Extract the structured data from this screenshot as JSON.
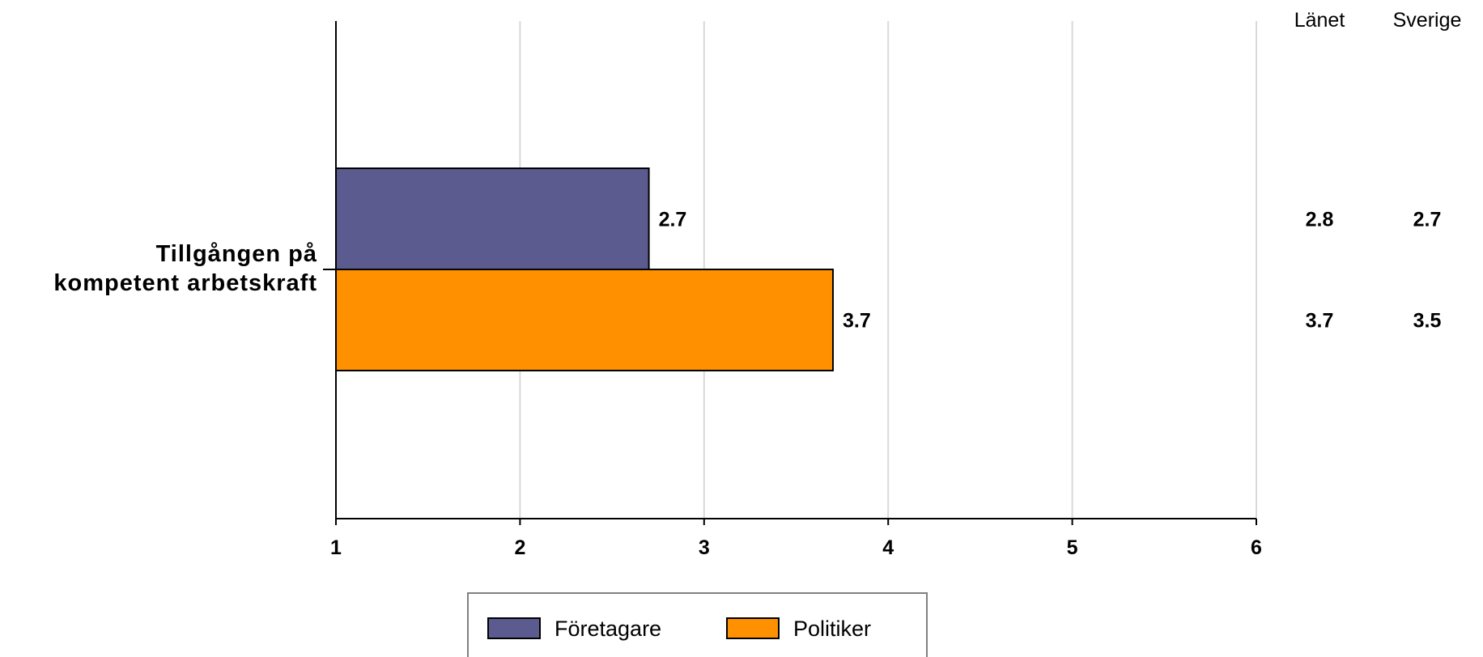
{
  "chart_data": {
    "type": "bar",
    "orientation": "horizontal",
    "categories": [
      "Tillgången på kompetent arbetskraft"
    ],
    "category_lines": [
      "Tillgången på",
      "kompetent arbetskraft"
    ],
    "series": [
      {
        "name": "Företagare",
        "values": [
          2.7
        ],
        "color": "#5b5b8f",
        "labels": [
          "2.7"
        ]
      },
      {
        "name": "Politiker",
        "values": [
          3.7
        ],
        "color": "#ff9100",
        "labels": [
          "3.7"
        ]
      }
    ],
    "xlim": [
      1,
      6
    ],
    "xticks": [
      "1",
      "2",
      "3",
      "4",
      "5",
      "6"
    ],
    "grid": true,
    "legend_position": "bottom",
    "side_columns": {
      "headers": [
        "Länet",
        "Sverige"
      ],
      "rows": [
        [
          "2.8",
          "2.7"
        ],
        [
          "3.7",
          "3.5"
        ]
      ]
    }
  }
}
